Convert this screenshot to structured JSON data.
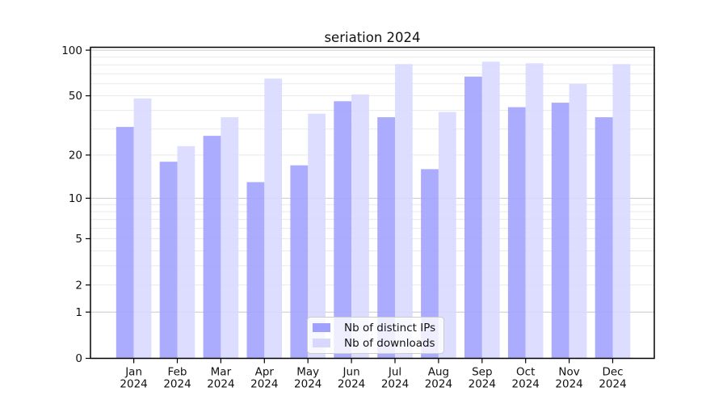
{
  "chart_data": {
    "type": "bar",
    "title": "seriation 2024",
    "categories": [
      "Jan",
      "Feb",
      "Mar",
      "Apr",
      "May",
      "Jun",
      "Jul",
      "Aug",
      "Sep",
      "Oct",
      "Nov",
      "Dec"
    ],
    "category_year": "2024",
    "series": [
      {
        "name": "Nb of distinct IPs",
        "color": "#a0a0ff",
        "values": [
          31,
          18,
          27,
          13,
          17,
          46,
          36,
          16,
          67,
          42,
          45,
          36
        ]
      },
      {
        "name": "Nb of downloads",
        "color": "#d8d8ff",
        "values": [
          48,
          23,
          36,
          65,
          38,
          51,
          81,
          39,
          84,
          82,
          60,
          81
        ]
      }
    ],
    "yscale": "log10(value+1)",
    "ylim": [
      0,
      108
    ],
    "yticks": [
      100,
      50,
      20,
      10,
      5,
      2,
      1,
      0
    ],
    "gridlines": {
      "minor": [
        2,
        3,
        4,
        5,
        6,
        7,
        8,
        9,
        20,
        30,
        40,
        50,
        60,
        70,
        80,
        90
      ],
      "major": [
        1,
        10,
        100
      ]
    },
    "grid_minor_color": "#e9e9e9",
    "grid_major_color": "#c9c9c9",
    "axis_color": "#000000",
    "legend_position": "lower center",
    "grid": "on"
  }
}
